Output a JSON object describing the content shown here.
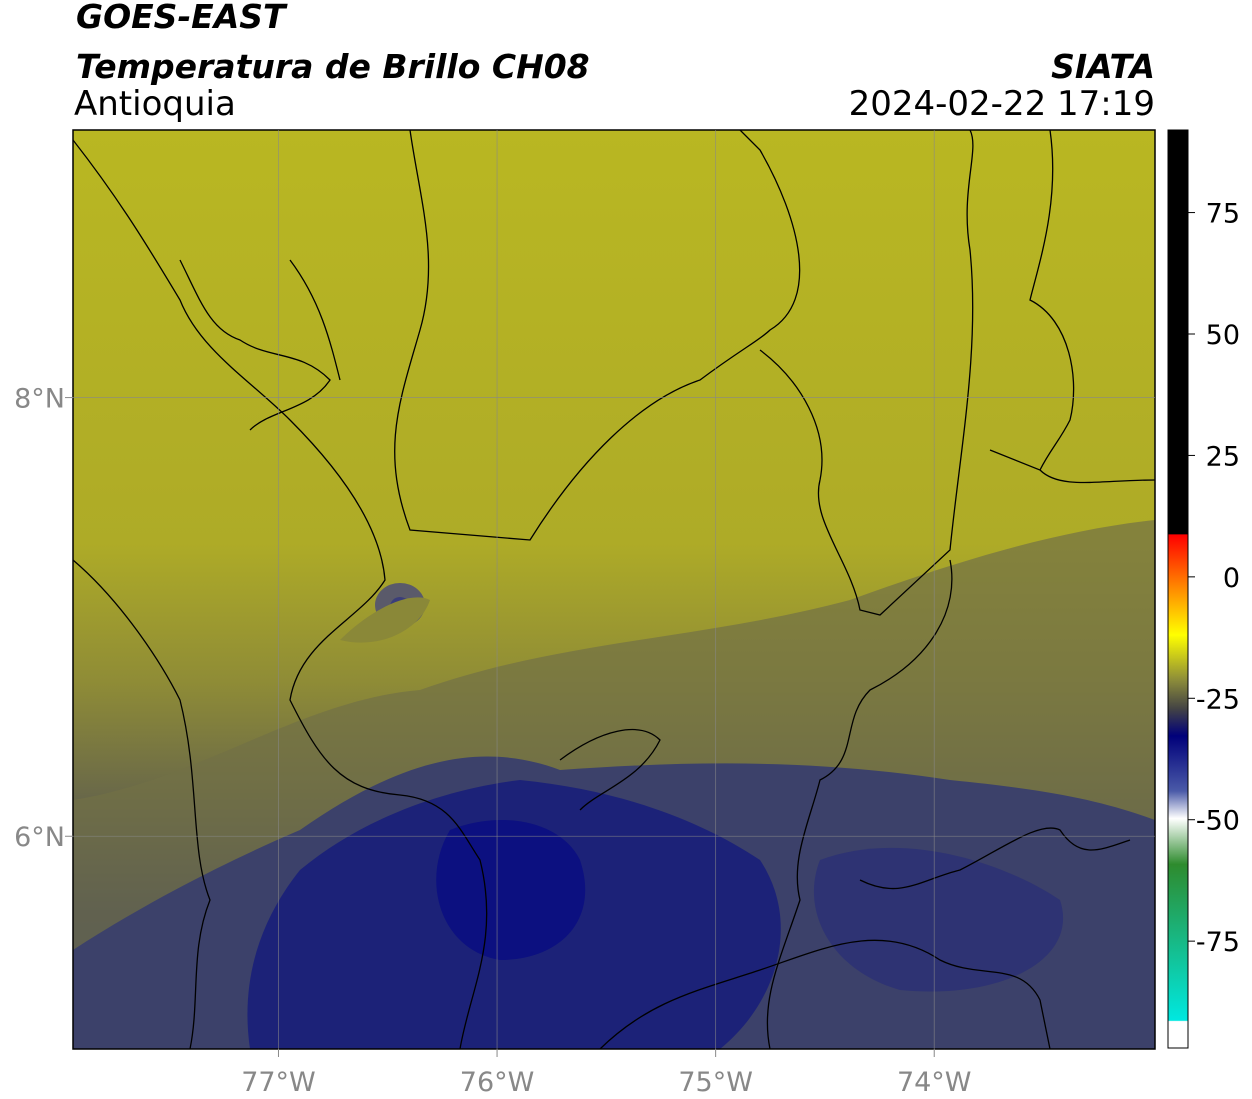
{
  "header": {
    "title": "GOES-EAST",
    "subtitle": "Temperatura de Brillo CH08",
    "source": "SIATA",
    "region": "Antioquia",
    "datetime": "2024-02-22 17:19"
  },
  "map": {
    "xlim": [
      -77.94,
      -72.99
    ],
    "ylim": [
      5.03,
      9.22
    ],
    "xticks": [
      {
        "value": -77,
        "label": "77°W"
      },
      {
        "value": -76,
        "label": "76°W"
      },
      {
        "value": -75,
        "label": "75°W"
      },
      {
        "value": -74,
        "label": "74°W"
      }
    ],
    "yticks": [
      {
        "value": 8,
        "label": "8°N"
      },
      {
        "value": 6,
        "label": "6°N"
      }
    ]
  },
  "colorbar": {
    "lim": [
      -97,
      92
    ],
    "ticks": [
      -75,
      -50,
      -25,
      0,
      25,
      50,
      75
    ]
  }
}
